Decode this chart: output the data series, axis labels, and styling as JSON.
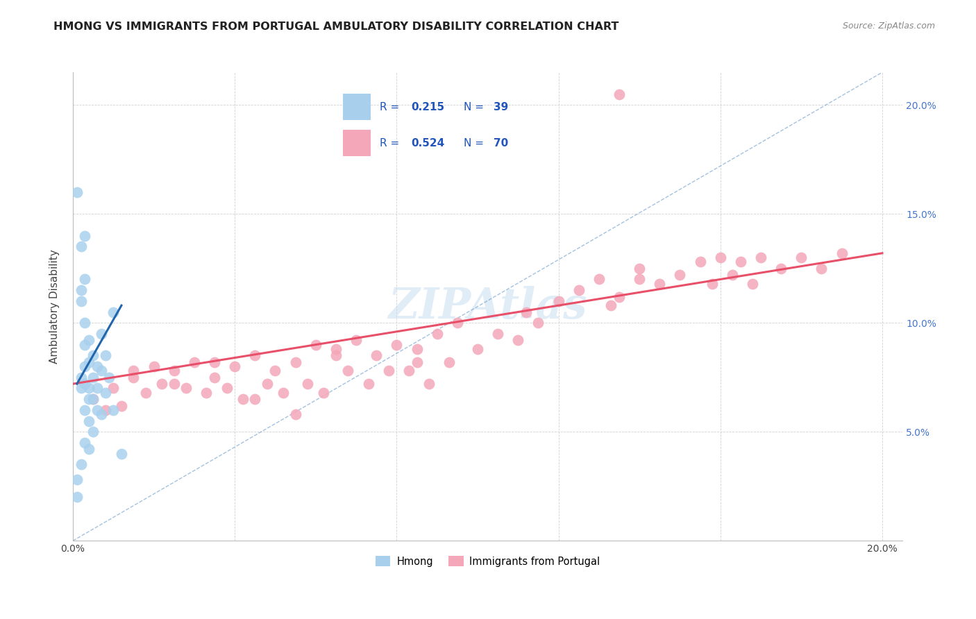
{
  "title": "HMONG VS IMMIGRANTS FROM PORTUGAL AMBULATORY DISABILITY CORRELATION CHART",
  "source": "Source: ZipAtlas.com",
  "ylabel": "Ambulatory Disability",
  "xlim": [
    0.0,
    0.205
  ],
  "ylim": [
    0.0,
    0.215
  ],
  "hmong_color": "#a8d0ed",
  "portugal_color": "#f4a7b9",
  "hmong_line_color": "#2166ac",
  "portugal_line_color": "#e8506a",
  "diagonal_color": "#6699cc",
  "watermark": "ZIPAtlas",
  "hmong_x": [
    0.001,
    0.001,
    0.001,
    0.002,
    0.002,
    0.002,
    0.002,
    0.002,
    0.002,
    0.003,
    0.003,
    0.003,
    0.003,
    0.003,
    0.003,
    0.003,
    0.003,
    0.004,
    0.004,
    0.004,
    0.004,
    0.004,
    0.004,
    0.005,
    0.005,
    0.005,
    0.005,
    0.006,
    0.006,
    0.006,
    0.007,
    0.007,
    0.007,
    0.008,
    0.008,
    0.009,
    0.01,
    0.01,
    0.012
  ],
  "hmong_y": [
    0.16,
    0.028,
    0.02,
    0.135,
    0.115,
    0.11,
    0.075,
    0.07,
    0.035,
    0.14,
    0.12,
    0.1,
    0.09,
    0.08,
    0.072,
    0.06,
    0.045,
    0.092,
    0.082,
    0.07,
    0.065,
    0.055,
    0.042,
    0.085,
    0.075,
    0.065,
    0.05,
    0.08,
    0.07,
    0.06,
    0.095,
    0.078,
    0.058,
    0.085,
    0.068,
    0.075,
    0.105,
    0.06,
    0.04
  ],
  "portugal_x": [
    0.005,
    0.01,
    0.012,
    0.015,
    0.018,
    0.02,
    0.022,
    0.025,
    0.028,
    0.03,
    0.033,
    0.035,
    0.038,
    0.04,
    0.042,
    0.045,
    0.048,
    0.05,
    0.052,
    0.055,
    0.058,
    0.06,
    0.062,
    0.065,
    0.068,
    0.07,
    0.073,
    0.075,
    0.078,
    0.08,
    0.083,
    0.085,
    0.088,
    0.09,
    0.093,
    0.095,
    0.1,
    0.105,
    0.11,
    0.112,
    0.115,
    0.12,
    0.125,
    0.13,
    0.133,
    0.135,
    0.14,
    0.145,
    0.15,
    0.155,
    0.158,
    0.16,
    0.163,
    0.165,
    0.168,
    0.17,
    0.175,
    0.18,
    0.185,
    0.19,
    0.008,
    0.015,
    0.025,
    0.035,
    0.045,
    0.055,
    0.065,
    0.085,
    0.135,
    0.14
  ],
  "portugal_y": [
    0.065,
    0.07,
    0.062,
    0.075,
    0.068,
    0.08,
    0.072,
    0.078,
    0.07,
    0.082,
    0.068,
    0.075,
    0.07,
    0.08,
    0.065,
    0.085,
    0.072,
    0.078,
    0.068,
    0.082,
    0.072,
    0.09,
    0.068,
    0.088,
    0.078,
    0.092,
    0.072,
    0.085,
    0.078,
    0.09,
    0.078,
    0.088,
    0.072,
    0.095,
    0.082,
    0.1,
    0.088,
    0.095,
    0.092,
    0.105,
    0.1,
    0.11,
    0.115,
    0.12,
    0.108,
    0.112,
    0.125,
    0.118,
    0.122,
    0.128,
    0.118,
    0.13,
    0.122,
    0.128,
    0.118,
    0.13,
    0.125,
    0.13,
    0.125,
    0.132,
    0.06,
    0.078,
    0.072,
    0.082,
    0.065,
    0.058,
    0.085,
    0.082,
    0.205,
    0.12
  ],
  "portugal_line_x0": 0.0,
  "portugal_line_y0": 0.072,
  "portugal_line_x1": 0.2,
  "portugal_line_y1": 0.132,
  "hmong_line_x0": 0.001,
  "hmong_line_y0": 0.072,
  "hmong_line_x1": 0.012,
  "hmong_line_y1": 0.108
}
